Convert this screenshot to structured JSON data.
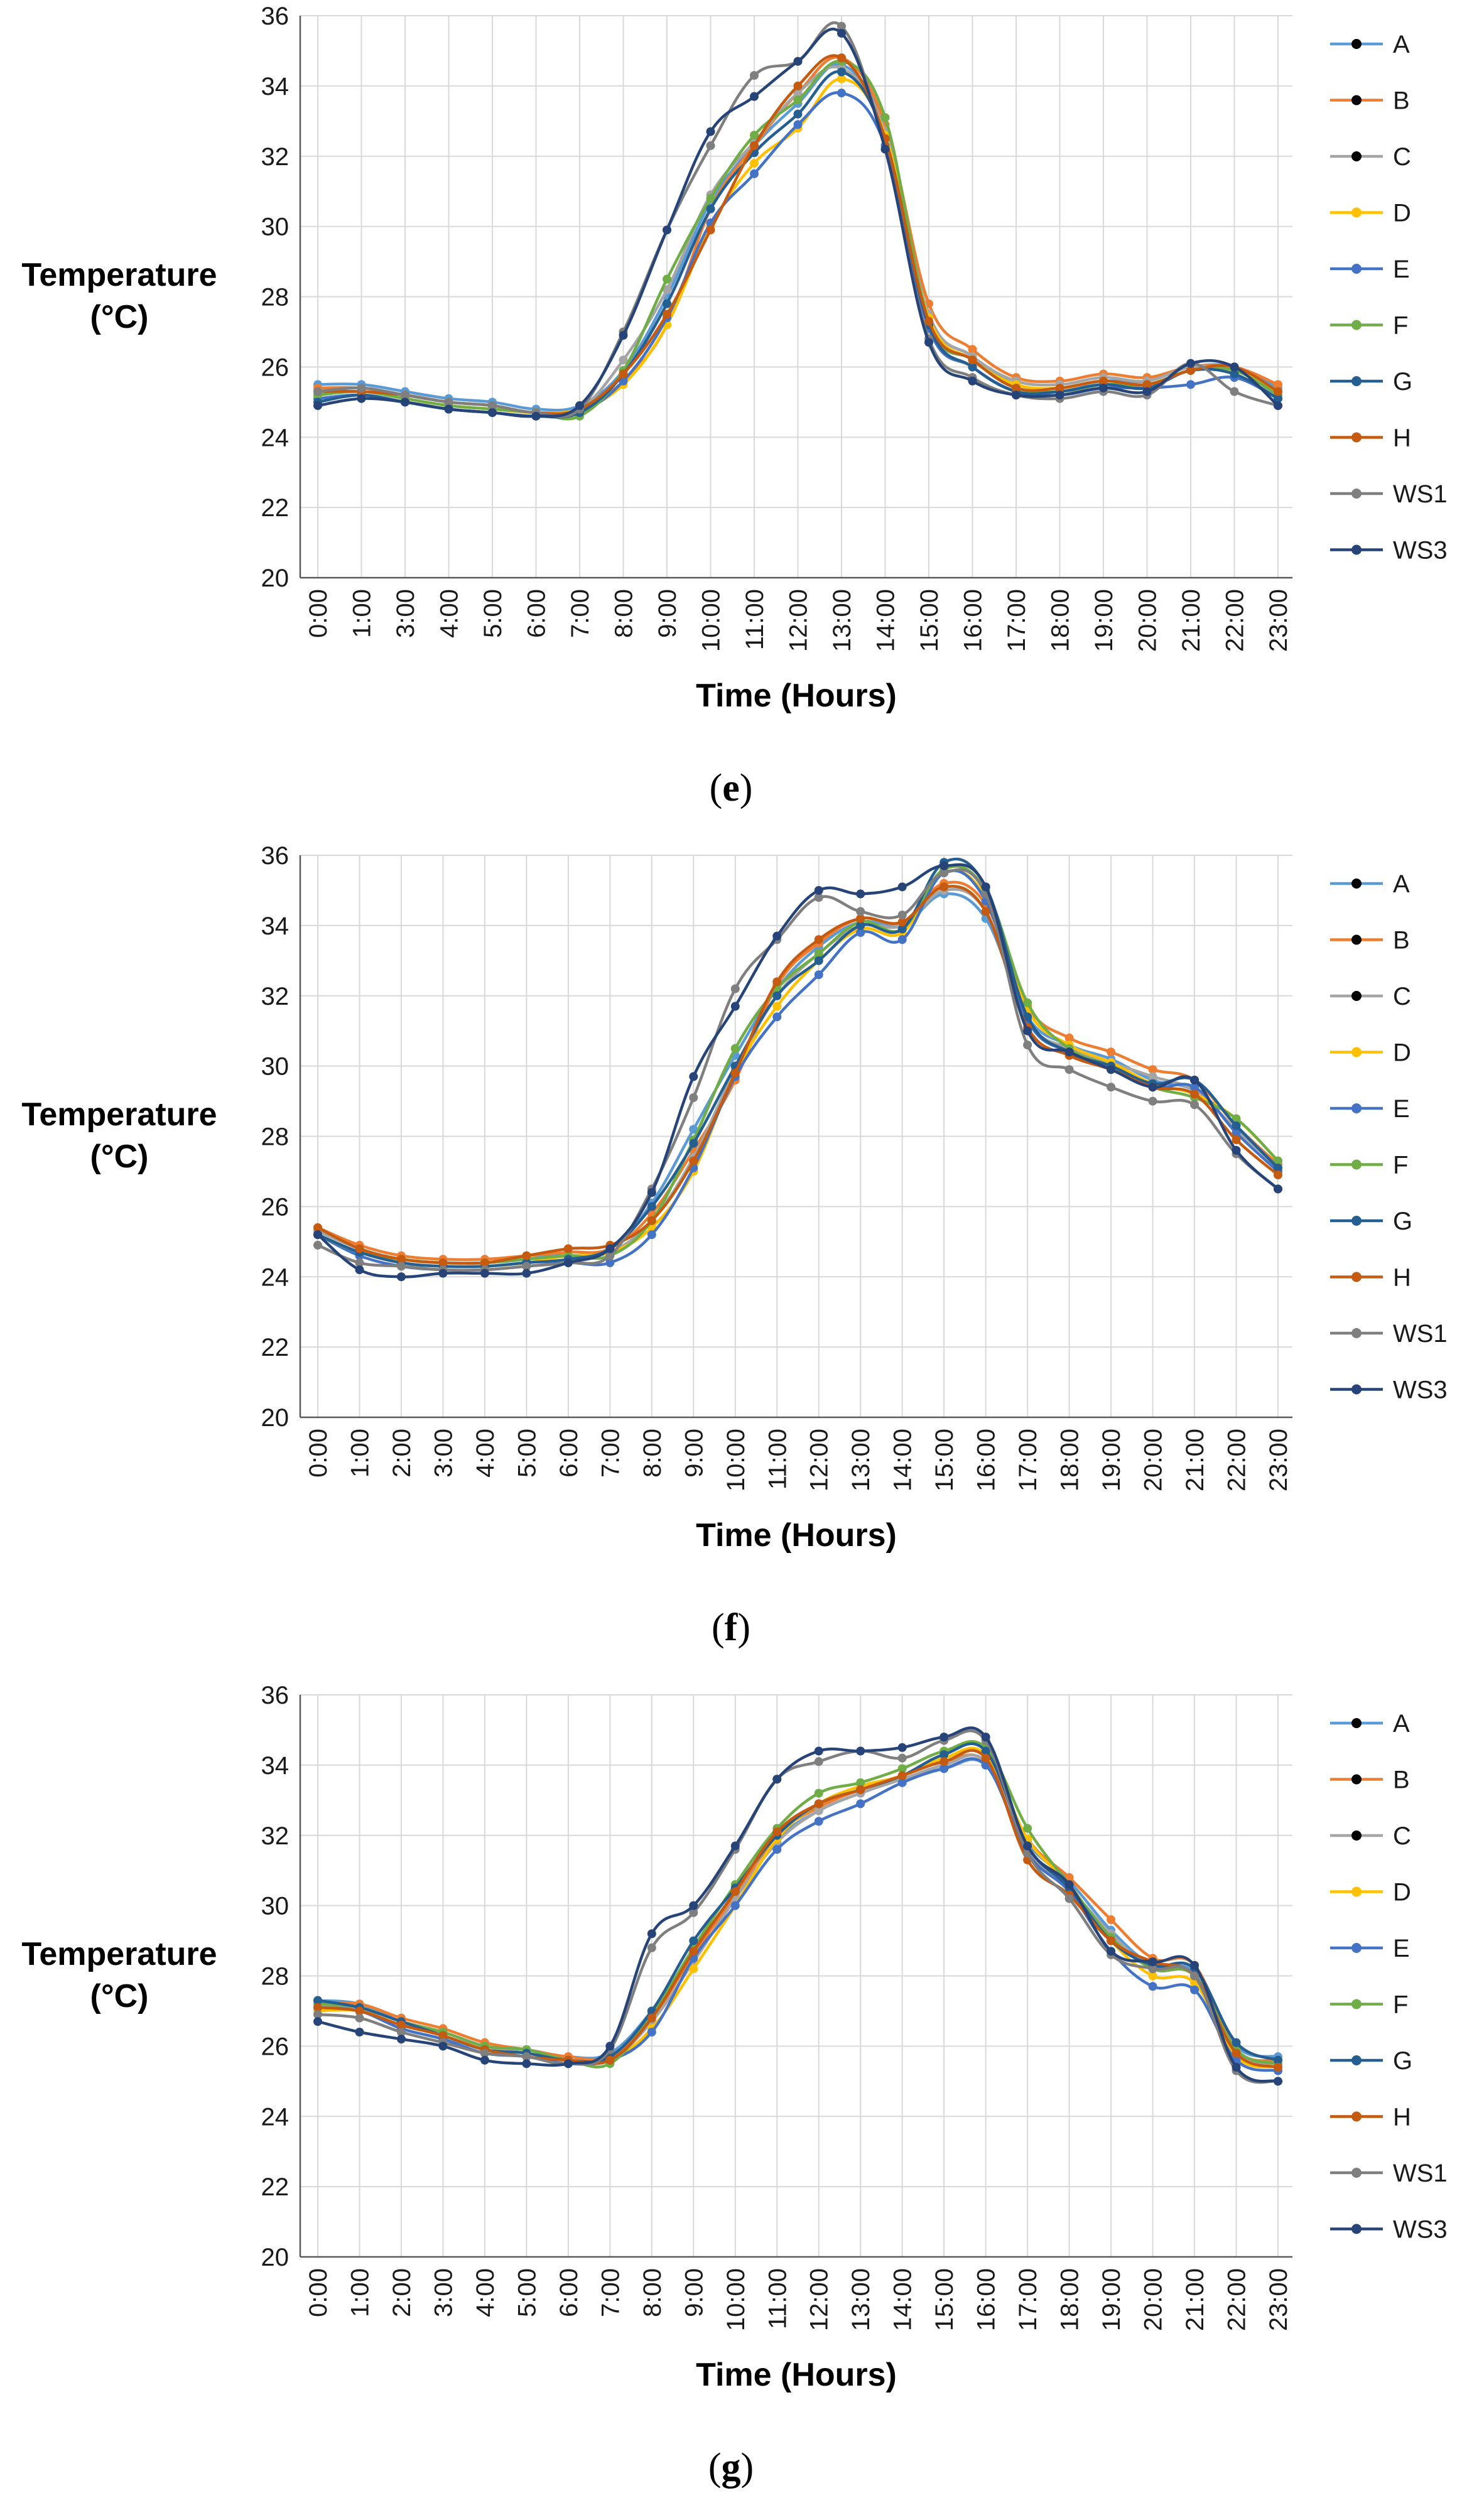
{
  "chart_data": [
    {
      "type": "line",
      "panel": "(e)",
      "caption_open": "(",
      "caption_letter": "e",
      "caption_close": ")",
      "ylabel_line1": "Temperature",
      "ylabel_line2": "(°C)",
      "xlabel": "Time (Hours)",
      "ylim": [
        20,
        36
      ],
      "yticks": [
        "20",
        "22",
        "24",
        "26",
        "28",
        "30",
        "32",
        "34",
        "36"
      ],
      "grid": true,
      "legend_position": "right",
      "x": [
        "0:00",
        "1:00",
        "3:00",
        "4:00",
        "5:00",
        "6:00",
        "7:00",
        "8:00",
        "9:00",
        "10:00",
        "11:00",
        "12:00",
        "13:00",
        "14:00",
        "15:00",
        "16:00",
        "17:00",
        "18:00",
        "19:00",
        "20:00",
        "21:00",
        "22:00",
        "23:00"
      ],
      "series": [
        {
          "name": "A",
          "color": "#5b9bd5",
          "values": [
            25.5,
            25.5,
            25.3,
            25.1,
            25.0,
            24.8,
            24.9,
            25.9,
            28.0,
            30.7,
            32.3,
            33.5,
            34.6,
            32.7,
            27.5,
            26.3,
            25.5,
            25.4,
            25.6,
            25.6,
            26.0,
            26.0,
            25.4
          ]
        },
        {
          "name": "B",
          "color": "#ed7d31",
          "values": [
            25.4,
            25.4,
            25.2,
            25.0,
            24.9,
            24.7,
            24.8,
            25.6,
            27.2,
            30.5,
            32.3,
            33.8,
            34.8,
            32.9,
            27.8,
            26.5,
            25.7,
            25.6,
            25.8,
            25.7,
            26.0,
            26.0,
            25.5
          ]
        },
        {
          "name": "C",
          "color": "#a5a5a5",
          "values": [
            25.3,
            25.4,
            25.2,
            25.0,
            24.9,
            24.7,
            24.8,
            26.2,
            28.2,
            30.9,
            32.4,
            33.8,
            34.5,
            32.7,
            27.5,
            26.3,
            25.6,
            25.5,
            25.7,
            25.6,
            26.0,
            25.9,
            25.3
          ]
        },
        {
          "name": "D",
          "color": "#ffc000",
          "values": [
            25.2,
            25.3,
            25.1,
            24.9,
            24.8,
            24.7,
            24.8,
            25.5,
            27.2,
            30.0,
            31.8,
            32.8,
            34.2,
            32.6,
            27.4,
            26.2,
            25.5,
            25.4,
            25.6,
            25.5,
            25.9,
            25.9,
            25.3
          ]
        },
        {
          "name": "E",
          "color": "#4472c4",
          "values": [
            25.1,
            25.2,
            25.0,
            24.8,
            24.7,
            24.6,
            24.7,
            25.6,
            27.4,
            30.1,
            31.5,
            32.9,
            33.8,
            32.3,
            27.1,
            26.0,
            25.3,
            25.2,
            25.4,
            25.4,
            25.5,
            25.7,
            25.1
          ]
        },
        {
          "name": "F",
          "color": "#70ad47",
          "values": [
            25.2,
            25.3,
            25.1,
            24.9,
            24.8,
            24.7,
            24.6,
            25.9,
            28.5,
            30.8,
            32.6,
            33.6,
            34.7,
            33.1,
            27.3,
            26.2,
            25.4,
            25.3,
            25.5,
            25.5,
            25.9,
            25.9,
            25.2
          ]
        },
        {
          "name": "G",
          "color": "#255e91",
          "values": [
            25.0,
            25.2,
            25.0,
            24.8,
            24.7,
            24.6,
            24.7,
            25.8,
            27.8,
            30.5,
            32.1,
            33.2,
            34.4,
            32.5,
            27.2,
            26.0,
            25.3,
            25.3,
            25.5,
            25.4,
            25.9,
            25.8,
            25.1
          ]
        },
        {
          "name": "H",
          "color": "#c55a11",
          "values": [
            25.3,
            25.3,
            25.2,
            25.0,
            24.9,
            24.7,
            24.8,
            25.8,
            27.5,
            29.9,
            32.3,
            34.0,
            34.8,
            32.5,
            27.3,
            26.2,
            25.4,
            25.4,
            25.6,
            25.5,
            25.9,
            26.0,
            25.3
          ]
        },
        {
          "name": "WS1",
          "color": "#7f7f7f",
          "values": [
            25.3,
            25.4,
            25.2,
            25.0,
            24.9,
            24.7,
            24.8,
            27.0,
            29.9,
            32.3,
            34.3,
            34.7,
            35.7,
            32.2,
            26.8,
            25.7,
            25.2,
            25.1,
            25.3,
            25.2,
            26.1,
            25.3,
            24.9
          ]
        },
        {
          "name": "WS3",
          "color": "#264478",
          "values": [
            24.9,
            25.1,
            25.0,
            24.8,
            24.7,
            24.6,
            24.9,
            26.9,
            29.9,
            32.7,
            33.7,
            34.7,
            35.5,
            32.2,
            26.7,
            25.6,
            25.2,
            25.2,
            25.4,
            25.3,
            26.1,
            26.0,
            24.9
          ]
        }
      ]
    },
    {
      "type": "line",
      "panel": "(f)",
      "caption_open": "(",
      "caption_letter": "f",
      "caption_close": ")",
      "ylabel_line1": "Temperature",
      "ylabel_line2": "(°C)",
      "xlabel": "Time (Hours)",
      "ylim": [
        20,
        36
      ],
      "yticks": [
        "20",
        "22",
        "24",
        "26",
        "28",
        "30",
        "32",
        "34",
        "36"
      ],
      "grid": true,
      "legend_position": "right",
      "x": [
        "0:00",
        "1:00",
        "2:00",
        "3:00",
        "4:00",
        "5:00",
        "6:00",
        "7:00",
        "8:00",
        "9:00",
        "10:00",
        "11:00",
        "12:00",
        "13:00",
        "14:00",
        "15:00",
        "16:00",
        "17:00",
        "18:00",
        "19:00",
        "20:00",
        "21:00",
        "22:00",
        "23:00"
      ],
      "series": [
        {
          "name": "A",
          "color": "#5b9bd5",
          "values": [
            25.3,
            24.8,
            24.5,
            24.4,
            24.4,
            24.5,
            24.7,
            24.8,
            26.1,
            28.2,
            30.3,
            32.2,
            33.4,
            34.1,
            34.0,
            34.9,
            34.2,
            31.4,
            30.6,
            30.2,
            29.6,
            29.3,
            28.2,
            27.2
          ]
        },
        {
          "name": "B",
          "color": "#ed7d31",
          "values": [
            25.4,
            24.9,
            24.6,
            24.5,
            24.5,
            24.6,
            24.7,
            24.8,
            25.8,
            27.6,
            29.6,
            32.3,
            33.5,
            34.2,
            34.1,
            35.2,
            34.6,
            31.7,
            30.8,
            30.4,
            29.9,
            29.6,
            28.3,
            27.2
          ]
        },
        {
          "name": "C",
          "color": "#a5a5a5",
          "values": [
            25.3,
            24.8,
            24.5,
            24.4,
            24.4,
            24.5,
            24.6,
            24.7,
            25.6,
            27.4,
            29.9,
            32.0,
            33.2,
            34.0,
            34.0,
            35.0,
            34.4,
            31.3,
            30.5,
            30.1,
            29.7,
            29.3,
            28.2,
            27.1
          ]
        },
        {
          "name": "D",
          "color": "#ffc000",
          "values": [
            25.2,
            24.7,
            24.4,
            24.3,
            24.3,
            24.4,
            24.6,
            24.7,
            25.4,
            27.0,
            29.8,
            31.7,
            33.0,
            33.9,
            33.8,
            35.5,
            34.8,
            31.6,
            30.6,
            30.1,
            29.5,
            29.2,
            28.5,
            27.3
          ]
        },
        {
          "name": "E",
          "color": "#4472c4",
          "values": [
            25.2,
            24.6,
            24.3,
            24.2,
            24.2,
            24.3,
            24.4,
            24.4,
            25.2,
            27.1,
            29.7,
            31.4,
            32.6,
            33.8,
            33.6,
            35.5,
            34.7,
            31.3,
            30.4,
            30.0,
            29.4,
            29.4,
            28.1,
            27.0
          ]
        },
        {
          "name": "F",
          "color": "#70ad47",
          "values": [
            25.2,
            24.7,
            24.5,
            24.4,
            24.4,
            24.5,
            24.6,
            24.6,
            25.6,
            27.9,
            30.5,
            32.2,
            33.2,
            34.1,
            33.9,
            35.6,
            35.0,
            31.8,
            30.5,
            30.0,
            29.4,
            29.1,
            28.5,
            27.3
          ]
        },
        {
          "name": "G",
          "color": "#255e91",
          "values": [
            25.2,
            24.7,
            24.4,
            24.3,
            24.3,
            24.4,
            24.5,
            24.8,
            26.0,
            27.8,
            30.0,
            32.0,
            33.0,
            34.0,
            33.9,
            35.8,
            35.1,
            31.4,
            30.4,
            30.0,
            29.5,
            29.6,
            28.3,
            27.1
          ]
        },
        {
          "name": "H",
          "color": "#c55a11",
          "values": [
            25.4,
            24.8,
            24.5,
            24.4,
            24.4,
            24.6,
            24.8,
            24.9,
            25.6,
            27.3,
            29.8,
            32.4,
            33.6,
            34.2,
            34.1,
            35.1,
            34.4,
            31.1,
            30.3,
            29.9,
            29.4,
            29.2,
            27.9,
            26.9
          ]
        },
        {
          "name": "WS1",
          "color": "#7f7f7f",
          "values": [
            24.9,
            24.4,
            24.3,
            24.2,
            24.2,
            24.3,
            24.4,
            24.6,
            26.5,
            29.1,
            32.2,
            33.6,
            34.8,
            34.4,
            34.3,
            35.5,
            34.9,
            30.6,
            29.9,
            29.4,
            29.0,
            28.9,
            27.5,
            26.5
          ]
        },
        {
          "name": "WS3",
          "color": "#264478",
          "values": [
            25.2,
            24.2,
            24.0,
            24.1,
            24.1,
            24.1,
            24.4,
            24.8,
            26.4,
            29.7,
            31.7,
            33.7,
            35.0,
            34.9,
            35.1,
            35.7,
            35.1,
            31.0,
            30.4,
            29.9,
            29.4,
            29.6,
            27.6,
            26.5
          ]
        }
      ]
    },
    {
      "type": "line",
      "panel": "(g)",
      "caption_open": "(",
      "caption_letter": "g",
      "caption_close": ")",
      "ylabel_line1": "Temperature",
      "ylabel_line2": "(°C)",
      "xlabel": "Time (Hours)",
      "ylim": [
        20,
        36
      ],
      "yticks": [
        "20",
        "22",
        "24",
        "26",
        "28",
        "30",
        "32",
        "34",
        "36"
      ],
      "grid": true,
      "legend_position": "right",
      "x": [
        "0:00",
        "1:00",
        "2:00",
        "3:00",
        "4:00",
        "5:00",
        "6:00",
        "7:00",
        "8:00",
        "9:00",
        "10:00",
        "11:00",
        "12:00",
        "13:00",
        "14:00",
        "15:00",
        "16:00",
        "17:00",
        "18:00",
        "19:00",
        "20:00",
        "21:00",
        "22:00",
        "23:00"
      ],
      "series": [
        {
          "name": "A",
          "color": "#5b9bd5",
          "values": [
            27.3,
            27.2,
            26.7,
            26.4,
            26.0,
            25.9,
            25.7,
            25.8,
            27.0,
            28.7,
            30.4,
            31.9,
            32.7,
            33.2,
            33.6,
            33.9,
            34.0,
            31.8,
            30.7,
            29.3,
            28.3,
            28.1,
            26.0,
            25.7
          ]
        },
        {
          "name": "B",
          "color": "#ed7d31",
          "values": [
            27.2,
            27.2,
            26.8,
            26.5,
            26.1,
            25.9,
            25.7,
            25.7,
            26.8,
            28.6,
            30.3,
            32.0,
            32.8,
            33.3,
            33.7,
            34.1,
            34.1,
            31.9,
            30.8,
            29.6,
            28.5,
            28.3,
            25.9,
            25.6
          ]
        },
        {
          "name": "C",
          "color": "#a5a5a5",
          "values": [
            27.1,
            27.1,
            26.7,
            26.4,
            26.0,
            25.8,
            25.6,
            25.6,
            26.7,
            28.4,
            30.2,
            31.8,
            32.7,
            33.2,
            33.6,
            34.0,
            34.1,
            31.6,
            30.5,
            29.2,
            28.2,
            28.0,
            25.8,
            25.5
          ]
        },
        {
          "name": "D",
          "color": "#ffc000",
          "values": [
            27.0,
            27.0,
            26.6,
            26.3,
            25.9,
            25.8,
            25.6,
            25.6,
            26.5,
            28.2,
            30.0,
            31.9,
            32.9,
            33.4,
            33.7,
            34.2,
            34.3,
            31.9,
            30.6,
            29.0,
            28.0,
            27.8,
            25.7,
            25.4
          ]
        },
        {
          "name": "E",
          "color": "#4472c4",
          "values": [
            27.1,
            27.0,
            26.5,
            26.2,
            25.8,
            25.7,
            25.5,
            25.6,
            26.4,
            28.5,
            30.0,
            31.6,
            32.4,
            32.9,
            33.5,
            33.9,
            34.0,
            31.5,
            30.4,
            28.7,
            27.7,
            27.6,
            25.6,
            25.3
          ]
        },
        {
          "name": "F",
          "color": "#70ad47",
          "values": [
            27.2,
            27.1,
            26.7,
            26.4,
            26.0,
            25.9,
            25.6,
            25.5,
            26.9,
            28.8,
            30.6,
            32.2,
            33.2,
            33.5,
            33.9,
            34.4,
            34.5,
            32.2,
            30.6,
            29.1,
            28.2,
            28.0,
            25.9,
            25.5
          ]
        },
        {
          "name": "G",
          "color": "#255e91",
          "values": [
            27.3,
            27.1,
            26.7,
            26.3,
            25.9,
            25.8,
            25.6,
            25.7,
            27.0,
            29.0,
            30.5,
            32.0,
            32.9,
            33.3,
            33.7,
            34.3,
            34.4,
            31.7,
            30.5,
            29.0,
            28.3,
            28.2,
            26.1,
            25.6
          ]
        },
        {
          "name": "H",
          "color": "#c55a11",
          "values": [
            27.1,
            27.0,
            26.6,
            26.3,
            25.9,
            25.7,
            25.6,
            25.6,
            26.8,
            28.7,
            30.4,
            32.1,
            32.9,
            33.3,
            33.7,
            34.1,
            34.2,
            31.3,
            30.3,
            29.0,
            28.4,
            28.0,
            25.8,
            25.4
          ]
        },
        {
          "name": "WS1",
          "color": "#7f7f7f",
          "values": [
            26.9,
            26.8,
            26.4,
            26.1,
            25.8,
            25.7,
            25.5,
            25.9,
            28.8,
            29.8,
            31.6,
            33.6,
            34.1,
            34.4,
            34.2,
            34.7,
            34.7,
            31.5,
            30.2,
            28.6,
            28.2,
            28.0,
            25.3,
            25.0
          ]
        },
        {
          "name": "WS3",
          "color": "#264478",
          "values": [
            26.7,
            26.4,
            26.2,
            26.0,
            25.6,
            25.5,
            25.5,
            26.0,
            29.2,
            30.0,
            31.7,
            33.6,
            34.4,
            34.4,
            34.5,
            34.8,
            34.8,
            31.7,
            30.6,
            28.7,
            28.4,
            28.3,
            25.4,
            25.0
          ]
        }
      ]
    }
  ]
}
